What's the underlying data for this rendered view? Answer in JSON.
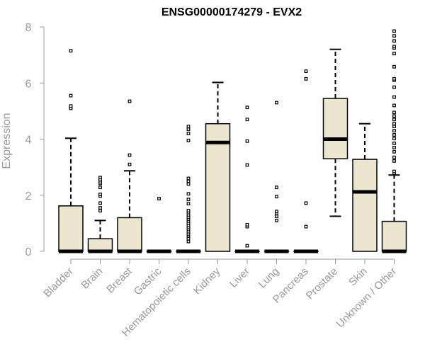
{
  "chart_data": {
    "type": "boxplot",
    "title": "ENSG00000174279 - EVX2",
    "ylabel": "Expression",
    "xlabel": "",
    "ylim": [
      0,
      8
    ],
    "yticks": [
      0,
      2,
      4,
      6,
      8
    ],
    "colors": {
      "box_fill": "#ede6cf",
      "box_stroke": "#000000",
      "axis": "#999999"
    },
    "categories": [
      "Bladder",
      "Brain",
      "Breast",
      "Gastric",
      "Hematopoietic cells",
      "Kidney",
      "Liver",
      "Lung",
      "Pancreas",
      "Prostate",
      "Skin",
      "Unknown / Other"
    ],
    "boxes": [
      {
        "name": "Bladder",
        "whisker_low": 0,
        "q1": 0,
        "median": 0,
        "q3": 1.62,
        "whisker_high": 4.03,
        "outliers": [
          5.1,
          5.18,
          5.55,
          7.15
        ]
      },
      {
        "name": "Brain",
        "whisker_low": 0,
        "q1": 0,
        "median": 0,
        "q3": 0.45,
        "whisker_high": 1.1,
        "outliers": [
          1.45,
          1.55,
          1.72,
          1.97,
          2.03,
          2.28,
          2.42,
          2.48,
          2.55,
          2.63
        ]
      },
      {
        "name": "Breast",
        "whisker_low": 0,
        "q1": 0,
        "median": 0,
        "q3": 1.2,
        "whisker_high": 2.87,
        "outliers": [
          3.1,
          3.43,
          5.35
        ]
      },
      {
        "name": "Gastric",
        "whisker_low": 0,
        "q1": 0,
        "median": 0,
        "q3": 0,
        "whisker_high": 0,
        "outliers": [
          1.88
        ]
      },
      {
        "name": "Hematopoietic cells",
        "whisker_low": 0,
        "q1": 0,
        "median": 0,
        "q3": 0,
        "whisker_high": 0,
        "outliers": [
          0.35,
          0.45,
          0.55,
          0.62,
          0.7,
          0.78,
          0.85,
          0.92,
          1.0,
          1.08,
          1.15,
          1.22,
          1.3,
          1.38,
          1.45,
          1.7,
          1.85,
          2.05,
          2.4,
          2.5,
          2.6,
          3.95,
          4.2,
          4.35,
          4.45
        ]
      },
      {
        "name": "Kidney",
        "whisker_low": 0,
        "q1": 0,
        "median": 3.88,
        "q3": 4.55,
        "whisker_high": 6.02,
        "outliers": []
      },
      {
        "name": "Liver",
        "whisker_low": 0,
        "q1": 0,
        "median": 0,
        "q3": 0,
        "whisker_high": 0,
        "outliers": [
          0.2,
          0.88,
          0.95,
          3.08,
          3.93,
          4.7,
          5.13
        ]
      },
      {
        "name": "Lung",
        "whisker_low": 0,
        "q1": 0,
        "median": 0,
        "q3": 0,
        "whisker_high": 0,
        "outliers": [
          1.1,
          1.25,
          1.35,
          1.42,
          1.95,
          2.28,
          5.3
        ]
      },
      {
        "name": "Pancreas",
        "whisker_low": 0,
        "q1": 0,
        "median": 0,
        "q3": 0,
        "whisker_high": 0,
        "outliers": [
          0.88,
          1.72,
          6.15,
          6.42
        ]
      },
      {
        "name": "Prostate",
        "whisker_low": 1.25,
        "q1": 3.3,
        "median": 4.0,
        "q3": 5.45,
        "whisker_high": 7.2,
        "outliers": []
      },
      {
        "name": "Skin",
        "whisker_low": 0,
        "q1": 0,
        "median": 2.12,
        "q3": 3.28,
        "whisker_high": 4.55,
        "outliers": []
      },
      {
        "name": "Unknown / Other",
        "whisker_low": 0,
        "q1": 0,
        "median": 0,
        "q3": 1.07,
        "whisker_high": 2.72,
        "outliers": [
          2.78,
          2.85,
          3.22,
          3.35,
          3.55,
          3.7,
          3.85,
          4.02,
          4.15,
          4.3,
          4.45,
          4.55,
          4.7,
          4.82,
          4.95,
          5.2,
          5.5,
          5.85,
          6.1,
          6.15,
          6.58,
          7.05,
          7.25,
          7.3,
          7.5,
          7.68,
          7.85
        ]
      }
    ]
  }
}
